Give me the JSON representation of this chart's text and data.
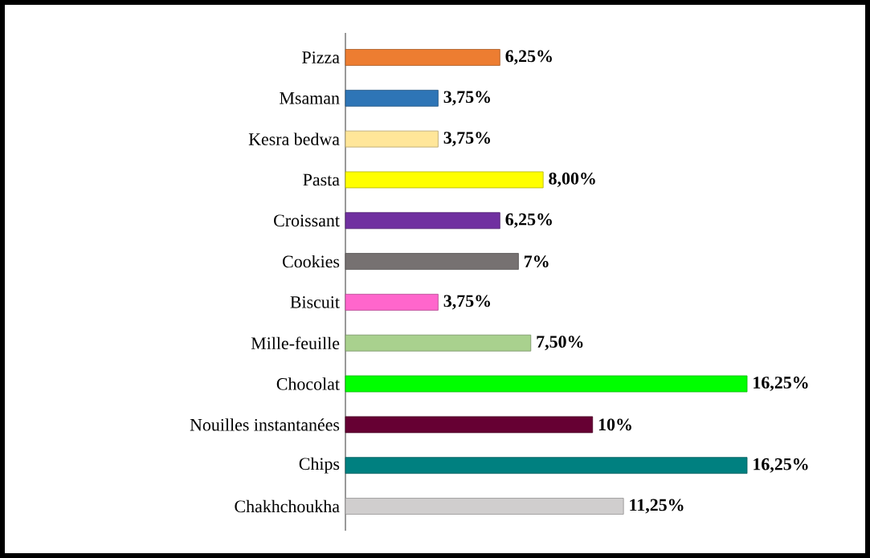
{
  "chart_data": {
    "type": "bar",
    "orientation": "horizontal",
    "categories": [
      "Pizza",
      "Msaman",
      "Kesra bedwa",
      "Pasta",
      "Croissant",
      "Cookies",
      "Biscuit",
      "Mille-feuille",
      "Chocolat",
      "Nouilles instantanées",
      "Chips",
      "Chakhchoukha"
    ],
    "values": [
      6.25,
      3.75,
      3.75,
      8.0,
      6.25,
      7,
      3.75,
      7.5,
      16.25,
      10,
      16.25,
      11.25
    ],
    "value_labels": [
      "6,25%",
      "3,75%",
      "3,75%",
      "8,00%",
      "6,25%",
      "7%",
      "3,75%",
      "7,50%",
      "16,25%",
      "10%",
      "16,25%",
      "11,25%"
    ],
    "colors": [
      "#ed7d31",
      "#2e75b6",
      "#ffe699",
      "#ffff00",
      "#7030a0",
      "#767171",
      "#ff66cc",
      "#a9d18e",
      "#00ff00",
      "#660033",
      "#008080",
      "#d0cece"
    ]
  }
}
